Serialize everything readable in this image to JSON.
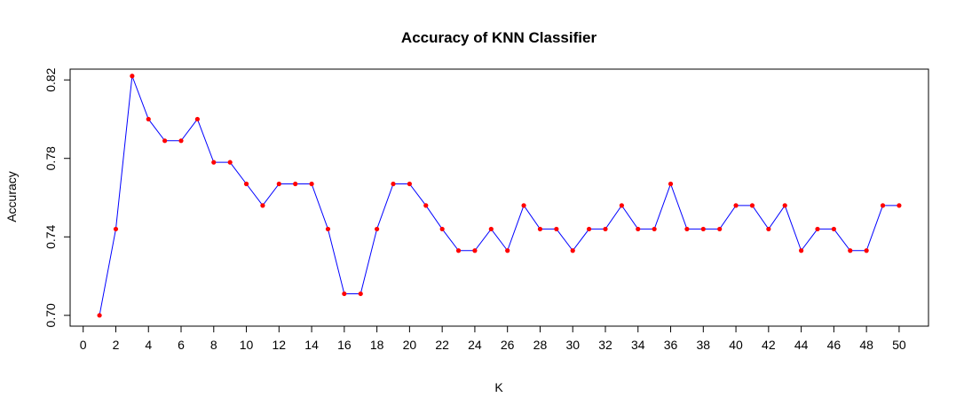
{
  "chart_data": {
    "type": "line",
    "title": "Accuracy of KNN Classifier",
    "xlabel": "K",
    "ylabel": "Accuracy",
    "xlim": [
      -0.8,
      51.8
    ],
    "ylim": [
      0.6945,
      0.8255
    ],
    "x_ticks": [
      0,
      2,
      4,
      6,
      8,
      10,
      12,
      14,
      16,
      18,
      20,
      22,
      24,
      26,
      28,
      30,
      32,
      34,
      36,
      38,
      40,
      42,
      44,
      46,
      48,
      50
    ],
    "y_ticks": [
      "0.70",
      "0.74",
      "0.78",
      "0.82"
    ],
    "grid": false,
    "line_color": "#0000ff",
    "point_color": "#ff0000",
    "series": [
      {
        "x": [
          1,
          2,
          3,
          4,
          5,
          6,
          7,
          8,
          9,
          10,
          11,
          12,
          13,
          14,
          15,
          16,
          17,
          18,
          19,
          20,
          21,
          22,
          23,
          24,
          25,
          26,
          27,
          28,
          29,
          30,
          31,
          32,
          33,
          34,
          35,
          36,
          37,
          38,
          39,
          40,
          41,
          42,
          43,
          44,
          45,
          46,
          47,
          48,
          49,
          50
        ],
        "values": [
          0.7,
          0.744,
          0.822,
          0.8,
          0.789,
          0.789,
          0.8,
          0.778,
          0.778,
          0.767,
          0.756,
          0.767,
          0.767,
          0.767,
          0.744,
          0.711,
          0.711,
          0.744,
          0.767,
          0.767,
          0.756,
          0.744,
          0.733,
          0.733,
          0.744,
          0.733,
          0.756,
          0.744,
          0.744,
          0.733,
          0.744,
          0.744,
          0.756,
          0.744,
          0.744,
          0.767,
          0.744,
          0.744,
          0.744,
          0.756,
          0.756,
          0.744,
          0.756,
          0.733,
          0.744,
          0.744,
          0.733,
          0.733,
          0.756,
          0.756
        ]
      }
    ]
  }
}
